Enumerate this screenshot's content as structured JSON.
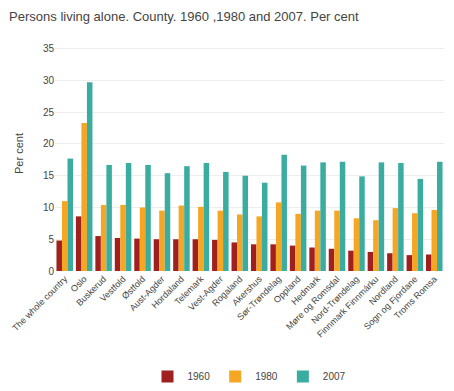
{
  "chart_data": {
    "type": "bar",
    "title": "Persons living alone. County. 1960 ,1980 and 2007. Per cent",
    "ylabel": "Per cent",
    "categories": [
      "The whole country",
      "Oslo",
      "Buskerud",
      "Vestfold",
      "Østfold",
      "Aust-Agder",
      "Hordaland",
      "Telemark",
      "Vest-Agder",
      "Rogaland",
      "Akershus",
      "Sør-Trøndelag",
      "Oppland",
      "Hedmark",
      "Møre og Romsdal",
      "Nord-Trøndelag",
      "Finnmark Finnmárku",
      "Nordland",
      "Sogn og Fjordane",
      "Troms Romsa"
    ],
    "series": [
      {
        "name": "1960",
        "color": "#a02020",
        "values": [
          4.8,
          8.6,
          5.5,
          5.2,
          5.1,
          5.0,
          5.0,
          5.0,
          4.9,
          4.5,
          4.2,
          4.2,
          4.0,
          3.7,
          3.5,
          3.2,
          3.0,
          2.8,
          2.5,
          2.6
        ]
      },
      {
        "name": "1980",
        "color": "#f5a623",
        "values": [
          11.0,
          23.3,
          10.4,
          10.4,
          10.0,
          9.5,
          10.3,
          10.1,
          9.5,
          8.9,
          8.6,
          10.8,
          9.0,
          9.5,
          9.5,
          8.3,
          8.0,
          9.9,
          9.1,
          9.6
        ]
      },
      {
        "name": "2007",
        "color": "#3aada0",
        "values": [
          17.7,
          29.7,
          16.7,
          17.0,
          16.7,
          15.4,
          16.5,
          17.0,
          15.6,
          15.0,
          13.9,
          18.3,
          16.6,
          17.1,
          17.2,
          14.9,
          17.1,
          17.0,
          14.5,
          17.2
        ]
      }
    ],
    "ylim": [
      0,
      37
    ],
    "yticks": [
      0,
      5,
      10,
      15,
      20,
      25,
      30,
      35
    ],
    "grid": true,
    "legend": "bottom"
  }
}
